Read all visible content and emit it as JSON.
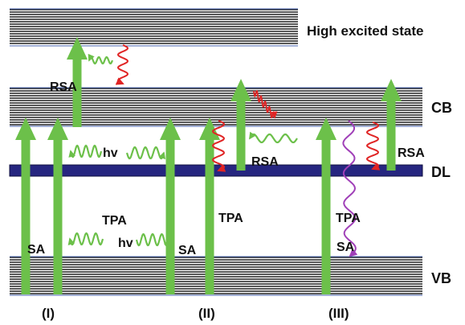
{
  "title": "High excited state",
  "bands": {
    "cb": "CB",
    "dl": "DL",
    "vb": "VB"
  },
  "process_labels": {
    "rsa_top": "RSA",
    "hv_upper": "hv",
    "tpa_i": "TPA",
    "sa_i": "SA",
    "hv_lower": "hv",
    "sa_i_right": "SA",
    "rsa_ii": "RSA",
    "tpa_ii": "TPA",
    "tpa_iii": "TPA",
    "sa_iii": "SA",
    "rsa_iii": "RSA"
  },
  "panels": {
    "i": "(I)",
    "ii": "(II)",
    "iii": "(III)"
  },
  "colors": {
    "band_line": "#222222",
    "band_edge": "#4a66b0",
    "defect_level": "#262680",
    "arrow_green": "#6cc04a",
    "photon_green": "#6cc04a",
    "relax_red": "#e02424",
    "purple_wave": "#a040b8"
  }
}
